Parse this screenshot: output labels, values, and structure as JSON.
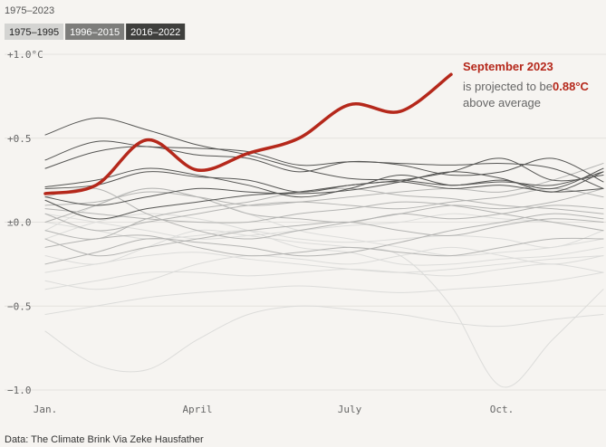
{
  "chart_data": {
    "type": "line",
    "title": "1975–2023",
    "legend": [
      {
        "label": "1975–1995",
        "color": "#d4d4d2",
        "text_color": "#222222"
      },
      {
        "label": "1996–2015",
        "color": "#7d7d7b",
        "text_color": "#ffffff"
      },
      {
        "label": "2016–2022",
        "color": "#3f3f3d",
        "text_color": "#ffffff"
      }
    ],
    "categories": [
      "Jan.",
      null,
      null,
      "April",
      null,
      null,
      "July",
      null,
      null,
      "Oct.",
      null,
      null
    ],
    "ylim": [
      -1,
      1
    ],
    "yticks": [
      {
        "value": 1,
        "label": "+1.0°C"
      },
      {
        "value": 0.5,
        "label": "+0.5"
      },
      {
        "value": 0,
        "label": "±0.0"
      },
      {
        "value": -0.5,
        "label": "−0.5"
      },
      {
        "value": -1,
        "label": "−1.0"
      }
    ],
    "grid": true,
    "series": [
      {
        "color": "#dcdcda",
        "values": [
          -0.3,
          -0.25,
          -0.2,
          -0.18,
          -0.22,
          -0.25,
          -0.28,
          -0.3,
          -0.28,
          -0.25,
          -0.22,
          -0.2
        ]
      },
      {
        "color": "#dcdcda",
        "values": [
          -0.4,
          -0.35,
          -0.3,
          -0.3,
          -0.32,
          -0.3,
          -0.28,
          -0.3,
          -0.32,
          -0.28,
          -0.25,
          -0.3
        ]
      },
      {
        "color": "#dcdcda",
        "values": [
          -0.65,
          -0.85,
          -0.88,
          -0.7,
          -0.55,
          -0.5,
          -0.52,
          -0.55,
          -0.6,
          -0.62,
          -0.58,
          -0.55
        ]
      },
      {
        "color": "#dcdcda",
        "values": [
          -0.05,
          0.1,
          0.2,
          0.15,
          0.05,
          -0.05,
          -0.1,
          -0.15,
          -0.2,
          -0.18,
          -0.15,
          -0.1
        ]
      },
      {
        "color": "#dcdcda",
        "values": [
          -0.2,
          -0.25,
          -0.15,
          -0.05,
          -0.08,
          -0.12,
          -0.15,
          -0.2,
          -0.5,
          -0.98,
          -0.7,
          -0.4
        ]
      },
      {
        "color": "#dcdcda",
        "values": [
          -0.55,
          -0.5,
          -0.45,
          -0.42,
          -0.4,
          -0.38,
          -0.4,
          -0.42,
          -0.4,
          -0.38,
          -0.35,
          -0.3
        ]
      },
      {
        "color": "#dcdcda",
        "values": [
          0.0,
          -0.05,
          -0.1,
          -0.08,
          -0.05,
          -0.1,
          -0.12,
          -0.1,
          -0.08,
          -0.1,
          -0.15,
          -0.05
        ]
      },
      {
        "color": "#dcdcda",
        "values": [
          -0.1,
          0.0,
          0.05,
          0.02,
          -0.05,
          -0.15,
          -0.18,
          -0.25,
          -0.25,
          -0.22,
          -0.2,
          -0.15
        ]
      },
      {
        "color": "#dcdcda",
        "values": [
          -0.35,
          -0.4,
          -0.35,
          -0.25,
          -0.2,
          -0.22,
          -0.25,
          -0.2,
          -0.15,
          -0.2,
          -0.25,
          -0.2
        ]
      },
      {
        "color": "#dcdcda",
        "values": [
          0.05,
          0.0,
          -0.05,
          -0.1,
          -0.08,
          -0.05,
          -0.02,
          0.0,
          0.05,
          0.02,
          0.0,
          -0.05
        ]
      },
      {
        "color": "#b4b4b2",
        "values": [
          0.1,
          0.12,
          0.18,
          0.15,
          0.1,
          0.12,
          0.15,
          0.18,
          0.2,
          0.18,
          0.25,
          0.35
        ]
      },
      {
        "color": "#b4b4b2",
        "values": [
          0.05,
          -0.05,
          0.0,
          0.05,
          0.1,
          0.12,
          0.1,
          0.08,
          0.12,
          0.15,
          0.2,
          0.15
        ]
      },
      {
        "color": "#b4b4b2",
        "values": [
          0.0,
          0.1,
          0.2,
          0.15,
          0.05,
          0.02,
          0.0,
          0.05,
          0.02,
          0.05,
          0.1,
          0.08
        ]
      },
      {
        "color": "#b4b4b2",
        "values": [
          -0.05,
          -0.1,
          0.02,
          0.08,
          0.12,
          0.18,
          0.2,
          0.16,
          0.14,
          0.1,
          0.08,
          0.05
        ]
      },
      {
        "color": "#b4b4b2",
        "values": [
          0.15,
          0.2,
          0.05,
          -0.05,
          -0.1,
          -0.05,
          0.0,
          0.05,
          0.1,
          0.08,
          0.12,
          0.2
        ]
      },
      {
        "color": "#b4b4b2",
        "values": [
          -0.1,
          -0.2,
          -0.15,
          -0.1,
          -0.05,
          -0.02,
          0.0,
          -0.05,
          -0.08,
          -0.02,
          0.02,
          0.0
        ]
      },
      {
        "color": "#b4b4b2",
        "values": [
          -0.25,
          -0.18,
          -0.1,
          -0.12,
          -0.15,
          -0.2,
          -0.18,
          -0.12,
          -0.05,
          0.0,
          0.05,
          0.02
        ]
      },
      {
        "color": "#b4b4b2",
        "values": [
          0.08,
          0.05,
          0.02,
          0.0,
          0.0,
          0.05,
          0.08,
          0.12,
          0.1,
          0.05,
          0.0,
          -0.05
        ]
      },
      {
        "color": "#b4b4b2",
        "values": [
          -0.15,
          -0.1,
          -0.08,
          -0.15,
          -0.2,
          -0.18,
          -0.15,
          -0.18,
          -0.2,
          -0.15,
          -0.1,
          -0.1
        ]
      },
      {
        "color": "#555553",
        "values": [
          0.52,
          0.62,
          0.55,
          0.46,
          0.4,
          0.32,
          0.26,
          0.25,
          0.22,
          0.24,
          0.22,
          0.3
        ]
      },
      {
        "color": "#555553",
        "values": [
          0.37,
          0.48,
          0.45,
          0.44,
          0.42,
          0.34,
          0.36,
          0.35,
          0.34,
          0.35,
          0.32,
          0.2
        ]
      },
      {
        "color": "#555553",
        "values": [
          0.32,
          0.42,
          0.45,
          0.4,
          0.38,
          0.3,
          0.36,
          0.34,
          0.28,
          0.3,
          0.38,
          0.24
        ]
      },
      {
        "color": "#555553",
        "values": [
          0.2,
          0.22,
          0.3,
          0.27,
          0.25,
          0.18,
          0.22,
          0.25,
          0.3,
          0.38,
          0.25,
          0.28
        ]
      },
      {
        "color": "#555553",
        "values": [
          0.15,
          0.1,
          0.15,
          0.2,
          0.18,
          0.17,
          0.19,
          0.24,
          0.3,
          0.26,
          0.18,
          0.3
        ]
      },
      {
        "color": "#555553",
        "values": [
          0.13,
          0.02,
          0.08,
          0.12,
          0.16,
          0.18,
          0.22,
          0.24,
          0.2,
          0.22,
          0.18,
          0.2
        ]
      },
      {
        "color": "#555553",
        "values": [
          0.21,
          0.25,
          0.32,
          0.28,
          0.22,
          0.15,
          0.2,
          0.28,
          0.22,
          0.25,
          0.2,
          0.32
        ]
      },
      {
        "color": "#b5281b",
        "highlight": true,
        "values": [
          0.17,
          0.22,
          0.49,
          0.31,
          0.41,
          0.5,
          0.7,
          0.66,
          0.88,
          null,
          null,
          null
        ],
        "value_labels": [
          null,
          null,
          null,
          null,
          null,
          null,
          null,
          null,
          "0.88°C",
          null,
          null,
          null
        ]
      }
    ],
    "annotation": {
      "title": "September 2023",
      "text_before": "is projected to be",
      "text_after": "above average"
    },
    "source": "Data: The Climate Brink Via Zeke Hausfather"
  }
}
